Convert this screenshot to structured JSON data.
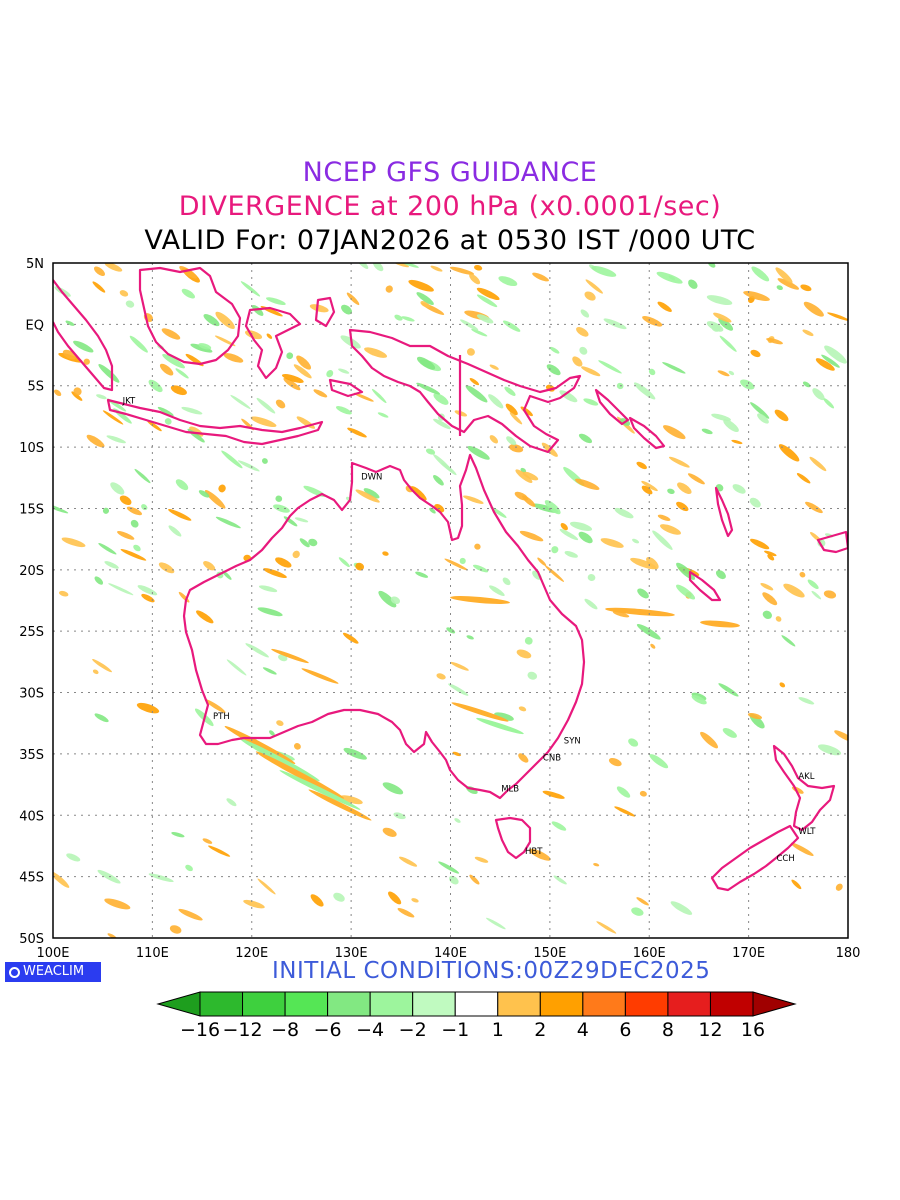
{
  "titles": {
    "line1": "NCEP GFS GUIDANCE",
    "line2": "DIVERGENCE at 200 hPa (x0.0001/sec)",
    "line3": "VALID For: 07JAN2026 at 0530 IST /000 UTC"
  },
  "colors": {
    "title1": "#8a2be2",
    "title2": "#e8197d",
    "coastline": "#e8197d",
    "badge": "#2b3cf0",
    "initial_conditions": "#3d5bd9"
  },
  "map": {
    "lon_range": [
      100,
      180
    ],
    "lat_range": [
      -50,
      5
    ],
    "lon_labels": [
      "100E",
      "110E",
      "120E",
      "130E",
      "140E",
      "150E",
      "160E",
      "170E",
      "180"
    ],
    "lat_labels": [
      "5N",
      "EQ",
      "5S",
      "10S",
      "15S",
      "20S",
      "25S",
      "30S",
      "35S",
      "40S",
      "45S",
      "50S"
    ],
    "cities": [
      {
        "name": "JKT",
        "lon": 106.8,
        "lat": -6.2
      },
      {
        "name": "DWN",
        "lon": 130.8,
        "lat": -12.4
      },
      {
        "name": "PTH",
        "lon": 115.9,
        "lat": -31.9
      },
      {
        "name": "SYN",
        "lon": 151.2,
        "lat": -33.9
      },
      {
        "name": "CNB",
        "lon": 149.1,
        "lat": -35.3
      },
      {
        "name": "MLB",
        "lon": 144.9,
        "lat": -37.8
      },
      {
        "name": "HBT",
        "lon": 147.3,
        "lat": -42.9
      },
      {
        "name": "AKL",
        "lon": 174.8,
        "lat": -36.8
      },
      {
        "name": "WLT",
        "lon": 174.8,
        "lat": -41.3
      },
      {
        "name": "CCH",
        "lon": 172.6,
        "lat": -43.5
      }
    ]
  },
  "legend": {
    "labels": [
      "−16",
      "−12",
      "−8",
      "−6",
      "−4",
      "−2",
      "−1",
      "1",
      "2",
      "4",
      "6",
      "8",
      "12",
      "16"
    ],
    "colors": [
      "#1e9e1e",
      "#2db92d",
      "#3ed03e",
      "#55e655",
      "#82e882",
      "#9df59d",
      "#c0fac0",
      "#ffffff",
      "#ffc24d",
      "#ffa000",
      "#ff7a1a",
      "#ff3c00",
      "#e61e1e",
      "#c00000",
      "#a00000"
    ]
  },
  "footer": {
    "badge_label": "WEACLIM",
    "initial_conditions": "INITIAL CONDITIONS:00Z29DEC2025"
  }
}
